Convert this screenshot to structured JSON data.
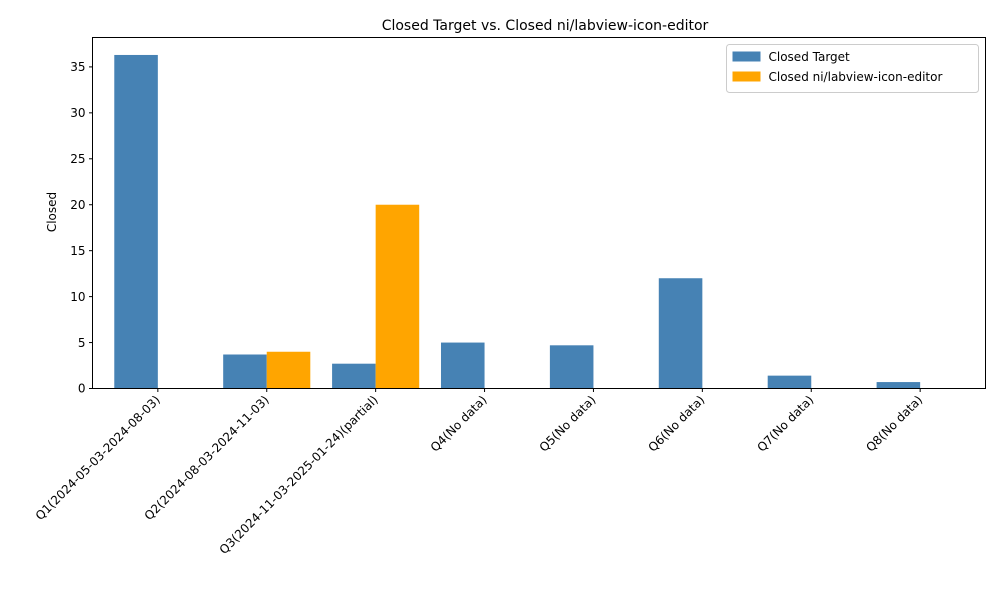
{
  "chart_data": {
    "type": "bar",
    "title": "Closed Target vs. Closed ni/labview-icon-editor",
    "xlabel": "",
    "ylabel": "Closed",
    "ylim": [
      0,
      38.2
    ],
    "yticks": [
      0,
      5,
      10,
      15,
      20,
      25,
      30,
      35
    ],
    "categories": [
      "Q1(2024-05-03-2024-08-03)",
      "Q2(2024-08-03-2024-11-03)",
      "Q3(2024-11-03-2025-01-24)(partial)",
      "Q4(No data)",
      "Q5(No data)",
      "Q6(No data)",
      "Q7(No data)",
      "Q8(No data)"
    ],
    "series": [
      {
        "name": "Closed Target",
        "color": "#4682b4",
        "values": [
          36.3,
          3.7,
          2.7,
          5.0,
          4.7,
          12.0,
          1.4,
          0.7
        ]
      },
      {
        "name": "Closed ni/labview-icon-editor",
        "color": "#ffa500",
        "values": [
          0,
          4,
          20,
          0,
          0,
          0,
          0,
          0
        ]
      }
    ],
    "legend": "top-right",
    "grid": false
  }
}
